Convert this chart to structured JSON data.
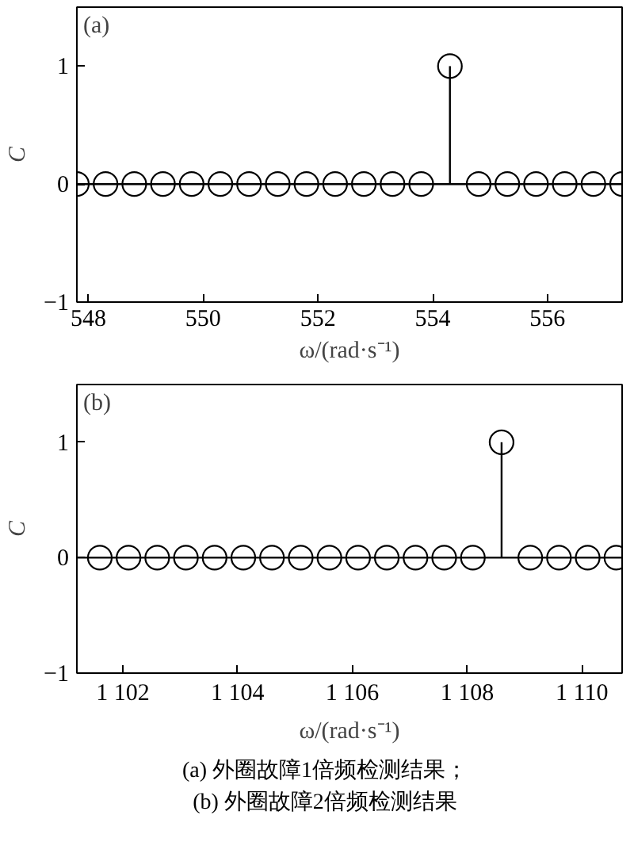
{
  "chart_data": [
    {
      "type": "lollipop",
      "annotations": [
        "(a)",
        "(a) 外圈故障1倍频检测结果；"
      ],
      "xlabel": "ω/(rad·s⁻¹)",
      "ylabel": "C",
      "marker": "circle",
      "color": "#000000",
      "x": [
        547.8,
        548.3,
        548.8,
        549.3,
        549.8,
        550.3,
        550.8,
        551.3,
        551.8,
        552.3,
        552.8,
        553.3,
        553.8,
        554.3,
        554.8,
        555.3,
        555.8,
        556.3,
        556.8,
        557.3
      ],
      "values": [
        0,
        0,
        0,
        0,
        0,
        0,
        0,
        0,
        0,
        0,
        0,
        0,
        0,
        1,
        0,
        0,
        0,
        0,
        0,
        0
      ],
      "ref_lines": [
        {
          "axis": "y",
          "value": 0
        }
      ],
      "xlim": [
        547.8,
        557.3
      ],
      "xticks": [
        548,
        550,
        552,
        554,
        556
      ],
      "ylim": [
        -1,
        1.5
      ],
      "yticks": [
        -1,
        0,
        1
      ],
      "grid": false
    },
    {
      "type": "lollipop",
      "annotations": [
        "(b)",
        "(b) 外圈故障2倍频检测结果"
      ],
      "xlabel": "ω/(rad·s⁻¹)",
      "ylabel": "C",
      "marker": "circle",
      "color": "#000000",
      "x": [
        1101.6,
        1102.1,
        1102.6,
        1103.1,
        1103.6,
        1104.1,
        1104.6,
        1105.1,
        1105.6,
        1106.1,
        1106.6,
        1107.1,
        1107.6,
        1108.1,
        1108.6,
        1109.1,
        1109.6,
        1110.1,
        1110.6
      ],
      "values": [
        0,
        0,
        0,
        0,
        0,
        0,
        0,
        0,
        0,
        0,
        0,
        0,
        0,
        0,
        1,
        0,
        0,
        0,
        0
      ],
      "ref_lines": [
        {
          "axis": "y",
          "value": 0
        }
      ],
      "xlim": [
        1101.2,
        1110.7
      ],
      "xticks": [
        {
          "value": 1102,
          "label": "1 102"
        },
        {
          "value": 1104,
          "label": "1 104"
        },
        {
          "value": 1106,
          "label": "1 106"
        },
        {
          "value": 1108,
          "label": "1 108"
        },
        {
          "value": 1110,
          "label": "1 110"
        }
      ],
      "ylim": [
        -1,
        1.5
      ],
      "yticks": [
        -1,
        0,
        1
      ],
      "grid": false
    }
  ]
}
